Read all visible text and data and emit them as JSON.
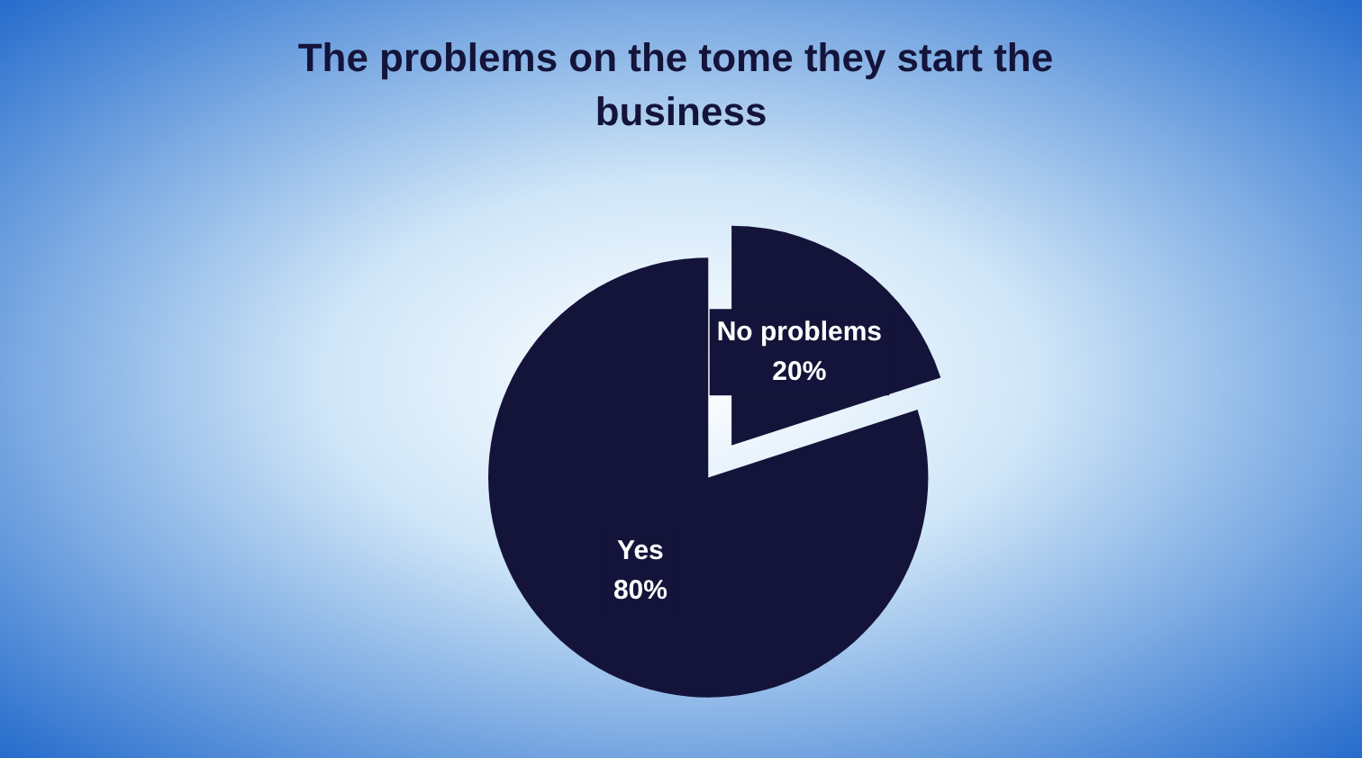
{
  "chart_data": {
    "type": "pie",
    "title": "The problems on the tome they start the business",
    "categories": [
      "No problems",
      "Yes"
    ],
    "values": [
      20,
      80
    ],
    "colors": [
      "#14143a",
      "#14143a"
    ],
    "value_labels": [
      "20%",
      "80%"
    ],
    "legend": false
  }
}
